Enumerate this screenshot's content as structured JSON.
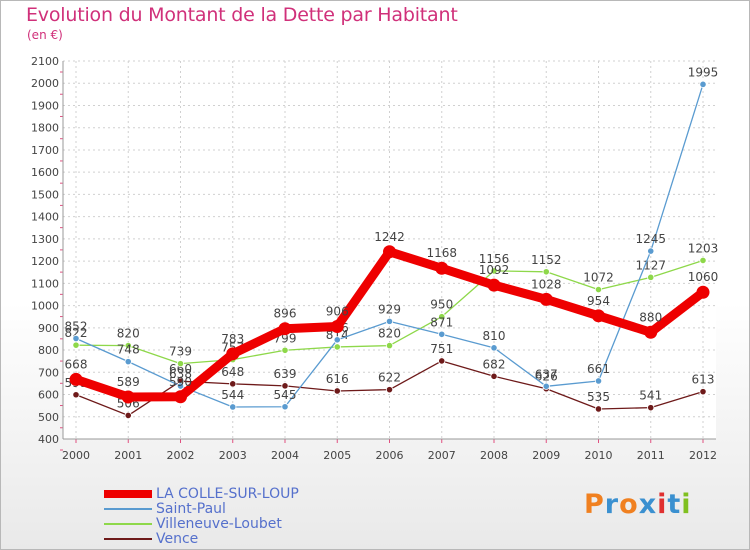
{
  "header": {
    "title": "Evolution du Montant de la Dette par Habitant",
    "subtitle": "(en €)"
  },
  "logo": {
    "text": "Proxiti",
    "letter_colors": [
      "#f08020",
      "#3a90d0",
      "#f08020",
      "#3a90d0",
      "#e03030",
      "#3a90d0",
      "#80c020"
    ]
  },
  "chart_data": {
    "type": "line",
    "title": "Evolution du Montant de la Dette par Habitant",
    "ylabel": "(en €)",
    "xlabel": "",
    "x": [
      "2000",
      "2001",
      "2002",
      "2003",
      "2004",
      "2005",
      "2006",
      "2007",
      "2008",
      "2009",
      "2010",
      "2011",
      "2012"
    ],
    "ylim": [
      400,
      2100
    ],
    "yticks": [
      400,
      500,
      600,
      700,
      800,
      900,
      1000,
      1100,
      1200,
      1300,
      1400,
      1500,
      1600,
      1700,
      1800,
      1900,
      2000,
      2100
    ],
    "grid": true,
    "legend_position": "bottom-left",
    "series": [
      {
        "name": "Vence",
        "color": "#6e1a1a",
        "values": [
          599,
          506,
          660,
          648,
          639,
          616,
          622,
          751,
          682,
          626,
          535,
          541,
          613
        ]
      },
      {
        "name": "Villeneuve-Loubet",
        "color": "#8ed84a",
        "values": [
          822,
          820,
          739,
          757,
          799,
          814,
          820,
          950,
          1156,
          1152,
          1072,
          1127,
          1203
        ]
      },
      {
        "name": "Saint-Paul",
        "color": "#5a9bd0",
        "values": [
          852,
          748,
          638,
          544,
          545,
          846,
          929,
          871,
          810,
          637,
          661,
          1245,
          1995
        ]
      },
      {
        "name": "LA COLLE-SUR-LOUP",
        "color": "#ee0000",
        "values": [
          668,
          589,
          590,
          783,
          896,
          906,
          1242,
          1168,
          1092,
          1028,
          954,
          880,
          1060
        ]
      }
    ]
  }
}
